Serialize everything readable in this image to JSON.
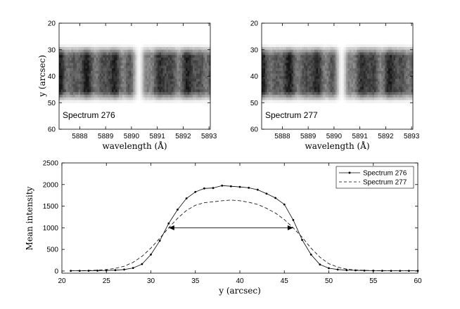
{
  "chart_data": [
    {
      "type": "heatmap",
      "title": "",
      "label": "Spectrum 276",
      "xlabel": "wavelength (Å)",
      "ylabel": "y (arcsec)",
      "xlim": [
        5887.2,
        5893.05
      ],
      "ylim": [
        20,
        60
      ],
      "xticks": [
        5888,
        5889,
        5890,
        5891,
        5892,
        5893
      ],
      "yticks": [
        20,
        30,
        40,
        50,
        60
      ],
      "band_y_range": [
        30,
        48
      ],
      "line_core_wavelength": 5890.3,
      "colormap": "gray_r"
    },
    {
      "type": "heatmap",
      "title": "",
      "label": "Spectrum 277",
      "xlabel": "wavelength (Å)",
      "ylabel": "",
      "xlim": [
        5887.2,
        5893.05
      ],
      "ylim": [
        20,
        60
      ],
      "xticks": [
        5888,
        5889,
        5890,
        5891,
        5892,
        5893
      ],
      "yticks": [
        20,
        30,
        40,
        50,
        60
      ],
      "band_y_range": [
        30,
        48
      ],
      "line_core_wavelength": 5890.3,
      "colormap": "gray_r"
    },
    {
      "type": "line",
      "title": "",
      "xlabel": "y (arcsec)",
      "ylabel": "Mean intensity",
      "xlim": [
        20,
        60
      ],
      "ylim": [
        -50,
        2500
      ],
      "xticks": [
        20,
        25,
        30,
        35,
        40,
        45,
        50,
        55,
        60
      ],
      "yticks": [
        0,
        500,
        1000,
        1500,
        2000,
        2500
      ],
      "legend_position": "top-right",
      "series": [
        {
          "name": "Spectrum 276",
          "style": "solid-dot",
          "x": [
            21,
            22,
            23,
            24,
            25,
            26,
            27,
            28,
            29,
            30,
            31,
            32,
            33,
            34,
            35,
            36,
            37,
            38,
            39,
            40,
            41,
            42,
            43,
            44,
            45,
            46,
            47,
            48,
            49,
            50,
            51,
            52,
            53,
            54,
            55,
            56,
            57,
            58,
            59,
            60
          ],
          "y": [
            5,
            5,
            6,
            8,
            12,
            20,
            35,
            70,
            160,
            380,
            700,
            1100,
            1420,
            1680,
            1830,
            1910,
            1920,
            1975,
            1960,
            1945,
            1925,
            1880,
            1790,
            1690,
            1540,
            1180,
            720,
            380,
            150,
            65,
            35,
            20,
            15,
            10,
            8,
            6,
            5,
            5,
            5,
            5
          ]
        },
        {
          "name": "Spectrum 277",
          "style": "dashed",
          "x": [
            21,
            22,
            23,
            24,
            25,
            26,
            27,
            28,
            29,
            30,
            31,
            32,
            33,
            34,
            35,
            36,
            37,
            38,
            39,
            40,
            41,
            42,
            43,
            44,
            45,
            46,
            47,
            48,
            49,
            50,
            51,
            52,
            53,
            54,
            55,
            56,
            57,
            58,
            59,
            60
          ],
          "y": [
            5,
            8,
            12,
            20,
            35,
            60,
            110,
            200,
            340,
            530,
            760,
            1000,
            1220,
            1400,
            1520,
            1580,
            1600,
            1625,
            1640,
            1625,
            1590,
            1540,
            1450,
            1340,
            1190,
            1000,
            780,
            530,
            320,
            170,
            90,
            45,
            25,
            15,
            10,
            7,
            5,
            5,
            5,
            5
          ]
        }
      ],
      "annotations": [
        {
          "type": "double-arrow",
          "x_start": 32,
          "x_end": 46,
          "y": 1000
        }
      ]
    }
  ]
}
